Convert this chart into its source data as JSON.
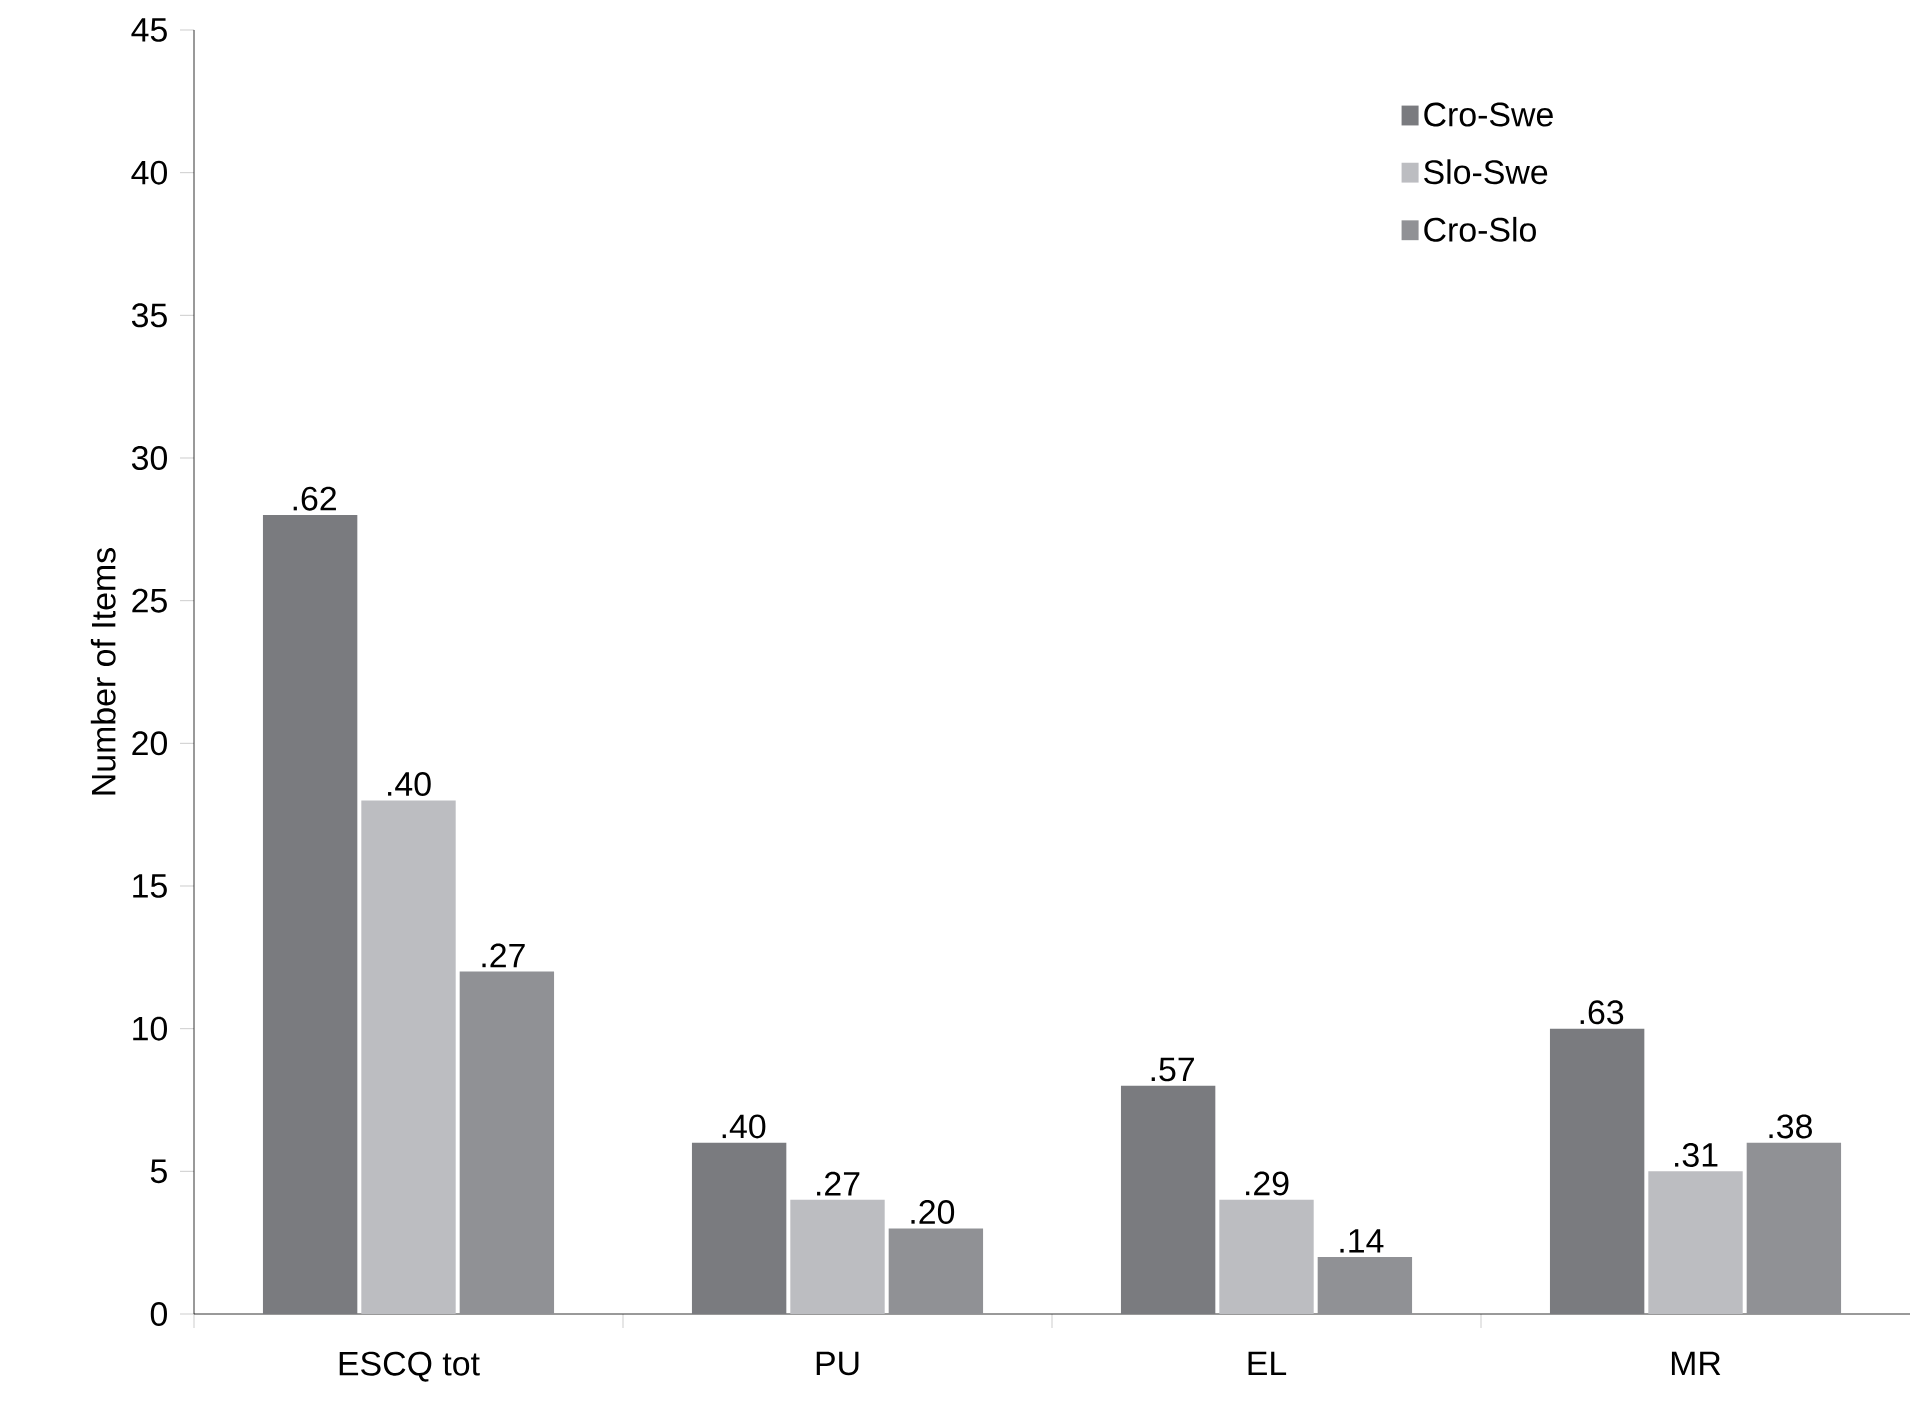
{
  "chart_data": {
    "type": "bar",
    "ylabel": "Number of Items",
    "categories": [
      "ESCQ tot",
      "PU",
      "EL",
      "MR"
    ],
    "series": [
      {
        "name": "Cro-Swe",
        "color": "#7a7b7f",
        "values": [
          28,
          6,
          8,
          10
        ]
      },
      {
        "name": "Slo-Swe",
        "color": "#bcbdc1",
        "values": [
          18,
          4,
          4,
          5
        ]
      },
      {
        "name": "Cro-Slo",
        "color": "#909195",
        "values": [
          12,
          3,
          2,
          6
        ]
      }
    ],
    "annotations": [
      ".62",
      ".40",
      ".27",
      ".40",
      ".27",
      ".20",
      ".57",
      ".29",
      ".14",
      ".63",
      ".31",
      ".38"
    ],
    "ylim": [
      0,
      45
    ],
    "yticks": [
      0,
      5,
      10,
      15,
      20,
      25,
      30,
      35,
      40,
      45
    ],
    "legend": "top right"
  }
}
